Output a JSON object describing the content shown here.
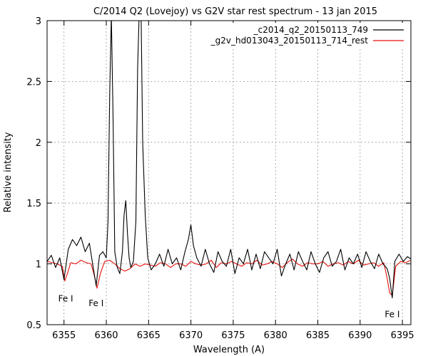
{
  "chart_data": {
    "type": "line",
    "title": "C/2014 Q2 (Lovejoy) vs G2V star rest spectrum - 13 jan 2015",
    "xlabel": "Wavelength (A)",
    "ylabel": "Relative intensity",
    "xlim": [
      6353,
      6396
    ],
    "ylim": [
      0.5,
      3
    ],
    "x_ticks": [
      6355,
      6360,
      6365,
      6370,
      6375,
      6380,
      6385,
      6390,
      6395
    ],
    "y_ticks": [
      0.5,
      1,
      1.5,
      2,
      2.5,
      3
    ],
    "grid": true,
    "legend_position": "top-right",
    "series": [
      {
        "name": "_c2014_q2_20150113_749",
        "color": "#000000",
        "x": [
          6353.0,
          6353.5,
          6354.0,
          6354.5,
          6355.0,
          6355.5,
          6356.0,
          6356.5,
          6357.0,
          6357.5,
          6358.0,
          6358.5,
          6358.8,
          6359.2,
          6359.6,
          6360.0,
          6360.2,
          6360.4,
          6360.6,
          6360.8,
          6361.0,
          6361.3,
          6361.6,
          6361.9,
          6362.1,
          6362.3,
          6362.5,
          6362.7,
          6362.9,
          6363.2,
          6363.5,
          6363.7,
          6363.9,
          6364.1,
          6364.3,
          6364.6,
          6364.9,
          6365.3,
          6365.8,
          6366.3,
          6366.8,
          6367.3,
          6367.8,
          6368.3,
          6368.8,
          6369.3,
          6369.7,
          6370.0,
          6370.3,
          6370.7,
          6371.2,
          6371.7,
          6372.2,
          6372.7,
          6373.2,
          6373.7,
          6374.2,
          6374.7,
          6375.2,
          6375.7,
          6376.2,
          6376.7,
          6377.2,
          6377.7,
          6378.2,
          6378.7,
          6379.2,
          6379.7,
          6380.2,
          6380.7,
          6381.2,
          6381.7,
          6382.2,
          6382.7,
          6383.2,
          6383.7,
          6384.2,
          6384.7,
          6385.2,
          6385.7,
          6386.2,
          6386.7,
          6387.2,
          6387.7,
          6388.2,
          6388.7,
          6389.2,
          6389.7,
          6390.2,
          6390.7,
          6391.2,
          6391.7,
          6392.2,
          6392.7,
          6393.2,
          6393.5,
          6393.8,
          6394.1,
          6394.6,
          6395.1,
          6395.6,
          6396.0
        ],
        "y": [
          1.02,
          1.07,
          0.97,
          1.05,
          0.87,
          1.12,
          1.2,
          1.15,
          1.22,
          1.1,
          1.17,
          0.95,
          0.82,
          1.07,
          1.1,
          1.05,
          1.35,
          2.4,
          3.05,
          2.2,
          1.1,
          0.97,
          0.92,
          1.1,
          1.4,
          1.52,
          1.25,
          1.05,
          0.97,
          1.02,
          1.35,
          2.6,
          3.1,
          3.1,
          2.0,
          1.4,
          1.05,
          0.95,
          1.0,
          1.08,
          0.98,
          1.12,
          1.0,
          1.05,
          0.95,
          1.1,
          1.2,
          1.32,
          1.15,
          1.05,
          0.98,
          1.12,
          1.0,
          0.93,
          1.1,
          1.02,
          0.98,
          1.12,
          0.92,
          1.05,
          1.0,
          1.12,
          0.95,
          1.08,
          0.96,
          1.1,
          1.05,
          1.0,
          1.12,
          0.9,
          1.0,
          1.08,
          0.95,
          1.1,
          1.02,
          0.95,
          1.1,
          1.0,
          0.93,
          1.05,
          1.1,
          0.98,
          1.02,
          1.12,
          0.95,
          1.05,
          1.0,
          1.08,
          0.97,
          1.1,
          1.02,
          0.96,
          1.08,
          1.0,
          0.96,
          0.88,
          0.72,
          1.02,
          1.08,
          1.02,
          1.06,
          1.04
        ]
      },
      {
        "name": "_g2v_hd013043_20150113_714_rest",
        "color": "#e8120c",
        "x": [
          6353.0,
          6353.6,
          6354.2,
          6354.8,
          6355.1,
          6355.4,
          6355.8,
          6356.4,
          6357.0,
          6357.6,
          6358.2,
          6358.6,
          6358.9,
          6359.3,
          6359.8,
          6360.4,
          6361.0,
          6361.6,
          6362.2,
          6362.8,
          6363.4,
          6364.0,
          6364.6,
          6365.2,
          6365.8,
          6366.4,
          6367.0,
          6367.6,
          6368.2,
          6368.8,
          6369.4,
          6370.0,
          6370.6,
          6371.2,
          6371.8,
          6372.4,
          6373.0,
          6373.6,
          6374.2,
          6374.8,
          6375.4,
          6376.0,
          6376.6,
          6377.2,
          6377.8,
          6378.4,
          6379.0,
          6379.6,
          6380.2,
          6380.8,
          6381.4,
          6382.0,
          6382.6,
          6383.2,
          6383.8,
          6384.4,
          6385.0,
          6385.6,
          6386.2,
          6386.8,
          6387.4,
          6388.0,
          6388.6,
          6389.2,
          6389.8,
          6390.4,
          6391.0,
          6391.6,
          6392.2,
          6392.8,
          6393.2,
          6393.5,
          6393.8,
          6394.2,
          6394.8,
          6395.4,
          6396.0
        ],
        "y": [
          1.02,
          1.01,
          1.0,
          0.98,
          0.86,
          0.92,
          1.01,
          1.0,
          1.03,
          1.01,
          1.0,
          0.9,
          0.8,
          0.92,
          1.02,
          1.03,
          1.0,
          0.96,
          0.94,
          0.96,
          1.0,
          0.98,
          1.0,
          0.99,
          0.98,
          1.01,
          1.0,
          0.97,
          1.0,
          1.0,
          0.98,
          1.02,
          1.0,
          0.99,
          1.0,
          1.03,
          0.97,
          1.01,
          1.0,
          1.02,
          1.0,
          0.98,
          1.01,
          1.0,
          1.03,
          0.99,
          1.0,
          1.02,
          1.0,
          0.97,
          1.01,
          1.04,
          1.0,
          0.98,
          1.01,
          1.0,
          1.0,
          1.02,
          0.98,
          1.0,
          1.01,
          0.99,
          1.02,
          1.0,
          1.03,
          0.99,
          1.0,
          1.01,
          0.98,
          1.01,
          0.88,
          0.76,
          0.74,
          0.98,
          1.02,
          1.01,
          1.03
        ]
      }
    ],
    "annotations": [
      {
        "text": "Fe I",
        "x": 6355.2,
        "y": 0.82
      },
      {
        "text": "Fe I",
        "x": 6358.8,
        "y": 0.78
      },
      {
        "text": "Fe I",
        "x": 6393.8,
        "y": 0.69
      }
    ]
  }
}
